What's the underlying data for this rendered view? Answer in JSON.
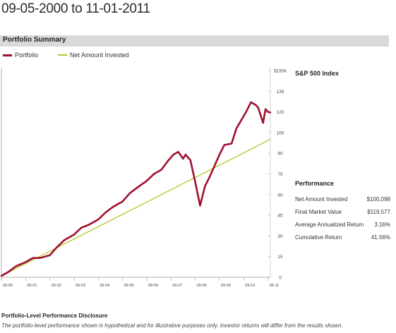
{
  "header": {
    "title": "09-05-2000 to 11-01-2011"
  },
  "section": {
    "label": "Portfolio Summary"
  },
  "legend": [
    {
      "label": "Portfolio",
      "color": "#a0102e"
    },
    {
      "label": "Net Amount Invested",
      "color": "#b4c832"
    }
  ],
  "side": {
    "index_label": "S&P 500 Index"
  },
  "performance": {
    "title": "Performance",
    "rows": [
      {
        "label": "Net Amount Invested",
        "value": "$100,098"
      },
      {
        "label": "Final Market Value",
        "value": "$119,577"
      },
      {
        "label": "Average Annualized Return",
        "value": "3.16%"
      },
      {
        "label": "Cumulative Return",
        "value": "41.56%"
      }
    ]
  },
  "disclosure": {
    "title": "Portfolio-Level Performance Disclosure",
    "text": "The portfolio-level performance shown is hypothetical and for illustrative purposes only. Investor returns will differ from the results shown."
  },
  "chart_data": {
    "type": "line",
    "ylim": [
      0,
      150
    ],
    "yticks": [
      0,
      15,
      30,
      45,
      60,
      75,
      90,
      105,
      120,
      135,
      150
    ],
    "ytick_labels": [
      "0",
      "15",
      "30",
      "45",
      "60",
      "75",
      "90",
      "105",
      "120",
      "135",
      "$150k"
    ],
    "xlim": [
      2000.0,
      2011.1
    ],
    "xticks": [
      2000.0,
      2001.0,
      2002.0,
      2003.0,
      2004.0,
      2005.0,
      2006.0,
      2007.0,
      2008.0,
      2009.0,
      2010.0,
      2011.0
    ],
    "xtick_labels": [
      "09-00",
      "09-01",
      "09-02",
      "09-03",
      "09-04",
      "09-05",
      "09-06",
      "09-07",
      "09-08",
      "09-09",
      "09-10",
      "09-11"
    ],
    "series": [
      {
        "name": "Portfolio",
        "color": "#a0102e",
        "x": [
          2000.0,
          2000.3,
          2000.6,
          2001.0,
          2001.3,
          2001.6,
          2002.0,
          2002.3,
          2002.6,
          2003.0,
          2003.3,
          2003.6,
          2004.0,
          2004.3,
          2004.6,
          2005.0,
          2005.3,
          2005.6,
          2006.0,
          2006.3,
          2006.6,
          2006.9,
          2007.1,
          2007.3,
          2007.5,
          2007.6,
          2007.8,
          2008.0,
          2008.2,
          2008.4,
          2008.6,
          2008.8,
          2009.0,
          2009.2,
          2009.5,
          2009.7,
          2009.9,
          2010.1,
          2010.3,
          2010.5,
          2010.6,
          2010.8,
          2010.9,
          2011.0,
          2011.1
        ],
        "y": [
          1,
          4,
          8,
          11,
          14,
          14,
          16,
          22,
          27,
          31,
          36,
          38,
          42,
          47,
          51,
          55,
          61,
          65,
          70,
          75,
          78,
          85,
          89,
          91,
          86,
          89,
          85,
          69,
          52,
          66,
          73,
          81,
          89,
          96,
          97,
          108,
          114,
          120,
          127,
          125,
          123,
          112,
          122,
          120,
          119.6
        ]
      },
      {
        "name": "Net Amount Invested",
        "color": "#b4c832",
        "x": [
          2000.0,
          2011.1
        ],
        "y": [
          1,
          100.1
        ]
      }
    ]
  }
}
